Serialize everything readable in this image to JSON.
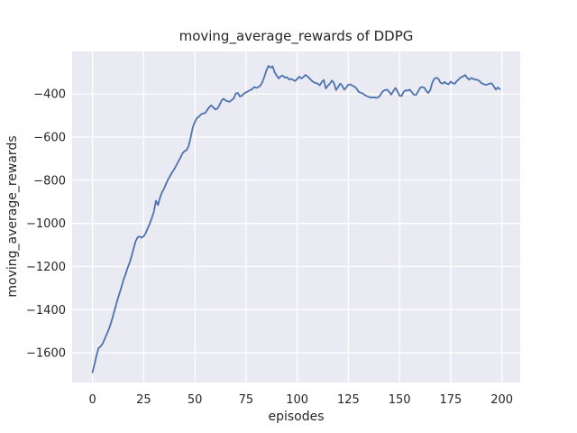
{
  "chart_data": {
    "type": "line",
    "title": "moving_average_rewards of DDPG",
    "xlabel": "episodes",
    "ylabel": "moving_average_rewards",
    "x_start": 0,
    "x_step": 1,
    "values": [
      -1690,
      -1652,
      -1610,
      -1577,
      -1570,
      -1556,
      -1535,
      -1512,
      -1490,
      -1462,
      -1430,
      -1395,
      -1360,
      -1330,
      -1300,
      -1265,
      -1240,
      -1210,
      -1185,
      -1155,
      -1120,
      -1085,
      -1065,
      -1060,
      -1066,
      -1060,
      -1045,
      -1022,
      -1000,
      -975,
      -945,
      -895,
      -915,
      -880,
      -855,
      -838,
      -815,
      -795,
      -778,
      -762,
      -748,
      -730,
      -712,
      -695,
      -675,
      -665,
      -660,
      -640,
      -600,
      -555,
      -530,
      -512,
      -505,
      -495,
      -490,
      -489,
      -475,
      -462,
      -453,
      -462,
      -472,
      -468,
      -452,
      -432,
      -422,
      -430,
      -434,
      -436,
      -428,
      -421,
      -398,
      -395,
      -412,
      -408,
      -398,
      -393,
      -388,
      -382,
      -378,
      -368,
      -372,
      -368,
      -362,
      -345,
      -320,
      -290,
      -270,
      -278,
      -272,
      -300,
      -315,
      -328,
      -318,
      -315,
      -325,
      -322,
      -333,
      -330,
      -335,
      -340,
      -331,
      -320,
      -328,
      -322,
      -312,
      -318,
      -328,
      -338,
      -345,
      -350,
      -352,
      -360,
      -345,
      -335,
      -375,
      -362,
      -352,
      -338,
      -350,
      -382,
      -368,
      -352,
      -362,
      -380,
      -370,
      -357,
      -356,
      -362,
      -366,
      -375,
      -390,
      -394,
      -398,
      -405,
      -410,
      -414,
      -417,
      -415,
      -417,
      -418,
      -413,
      -400,
      -386,
      -382,
      -380,
      -392,
      -403,
      -386,
      -372,
      -388,
      -408,
      -410,
      -390,
      -383,
      -385,
      -380,
      -392,
      -404,
      -405,
      -390,
      -372,
      -368,
      -370,
      -385,
      -396,
      -382,
      -348,
      -330,
      -325,
      -330,
      -348,
      -352,
      -345,
      -352,
      -355,
      -343,
      -350,
      -353,
      -340,
      -332,
      -322,
      -320,
      -312,
      -325,
      -334,
      -326,
      -330,
      -334,
      -334,
      -340,
      -350,
      -354,
      -358,
      -356,
      -352,
      -351,
      -364,
      -380,
      -370,
      -378
    ],
    "x_ticks": [
      0,
      25,
      50,
      75,
      100,
      125,
      150,
      175,
      200
    ],
    "x_tick_labels": [
      "0",
      "25",
      "50",
      "75",
      "100",
      "125",
      "150",
      "175",
      "200"
    ],
    "y_ticks": [
      -400,
      -600,
      -800,
      -1000,
      -1200,
      -1400,
      -1600
    ],
    "y_tick_labels": [
      "−400",
      "−600",
      "−800",
      "−1000",
      "−1200",
      "−1400",
      "−1600"
    ],
    "xlim": [
      -9.95,
      208.95
    ],
    "ylim": [
      -1737,
      -203
    ],
    "grid": true,
    "legend": null,
    "colors": {
      "line": "#4c72b0",
      "axes_background": "#eaeaf2",
      "grid": "#ffffff",
      "text": "#262626",
      "figure_background": "#ffffff"
    }
  }
}
